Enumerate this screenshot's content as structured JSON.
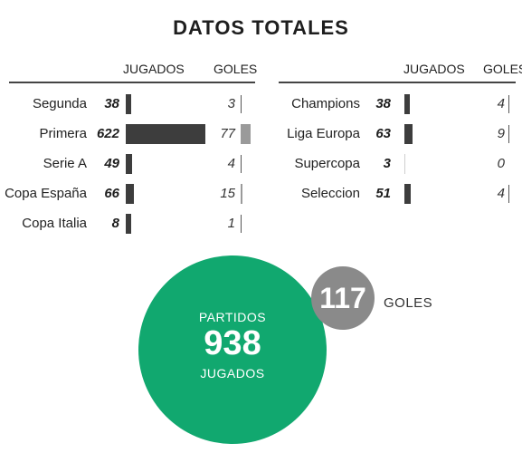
{
  "title": "DATOS TOTALES",
  "columns": {
    "played": "JUGADOS",
    "goals": "GOLES"
  },
  "chart_data": {
    "type": "bar",
    "title": "DATOS TOTALES",
    "groups": [
      {
        "rows": [
          {
            "category": "Segunda",
            "played": 38,
            "goals": 3
          },
          {
            "category": "Primera",
            "played": 622,
            "goals": 77
          },
          {
            "category": "Serie A",
            "played": 49,
            "goals": 4
          },
          {
            "category": "Copa España",
            "played": 66,
            "goals": 15
          },
          {
            "category": "Copa Italia",
            "played": 8,
            "goals": 1
          }
        ]
      },
      {
        "rows": [
          {
            "category": "Champions",
            "played": 38,
            "goals": 4
          },
          {
            "category": "Liga Europa",
            "played": 63,
            "goals": 9
          },
          {
            "category": "Supercopa",
            "played": 3,
            "goals": 0
          },
          {
            "category": "Seleccion",
            "played": 51,
            "goals": 4
          }
        ]
      }
    ],
    "scale": {
      "played_max": 622,
      "goals_max": 77
    }
  },
  "totals": {
    "played_top": "PARTIDOS",
    "played_value": "938",
    "played_bottom": "JUGADOS",
    "goals_value": "117",
    "goals_label": "GOLES"
  },
  "colors": {
    "played_bar": "#3d3d3d",
    "goals_bar": "#9a9a9a",
    "played_circle": "#11a86f",
    "goals_circle": "#8a8a8a"
  }
}
